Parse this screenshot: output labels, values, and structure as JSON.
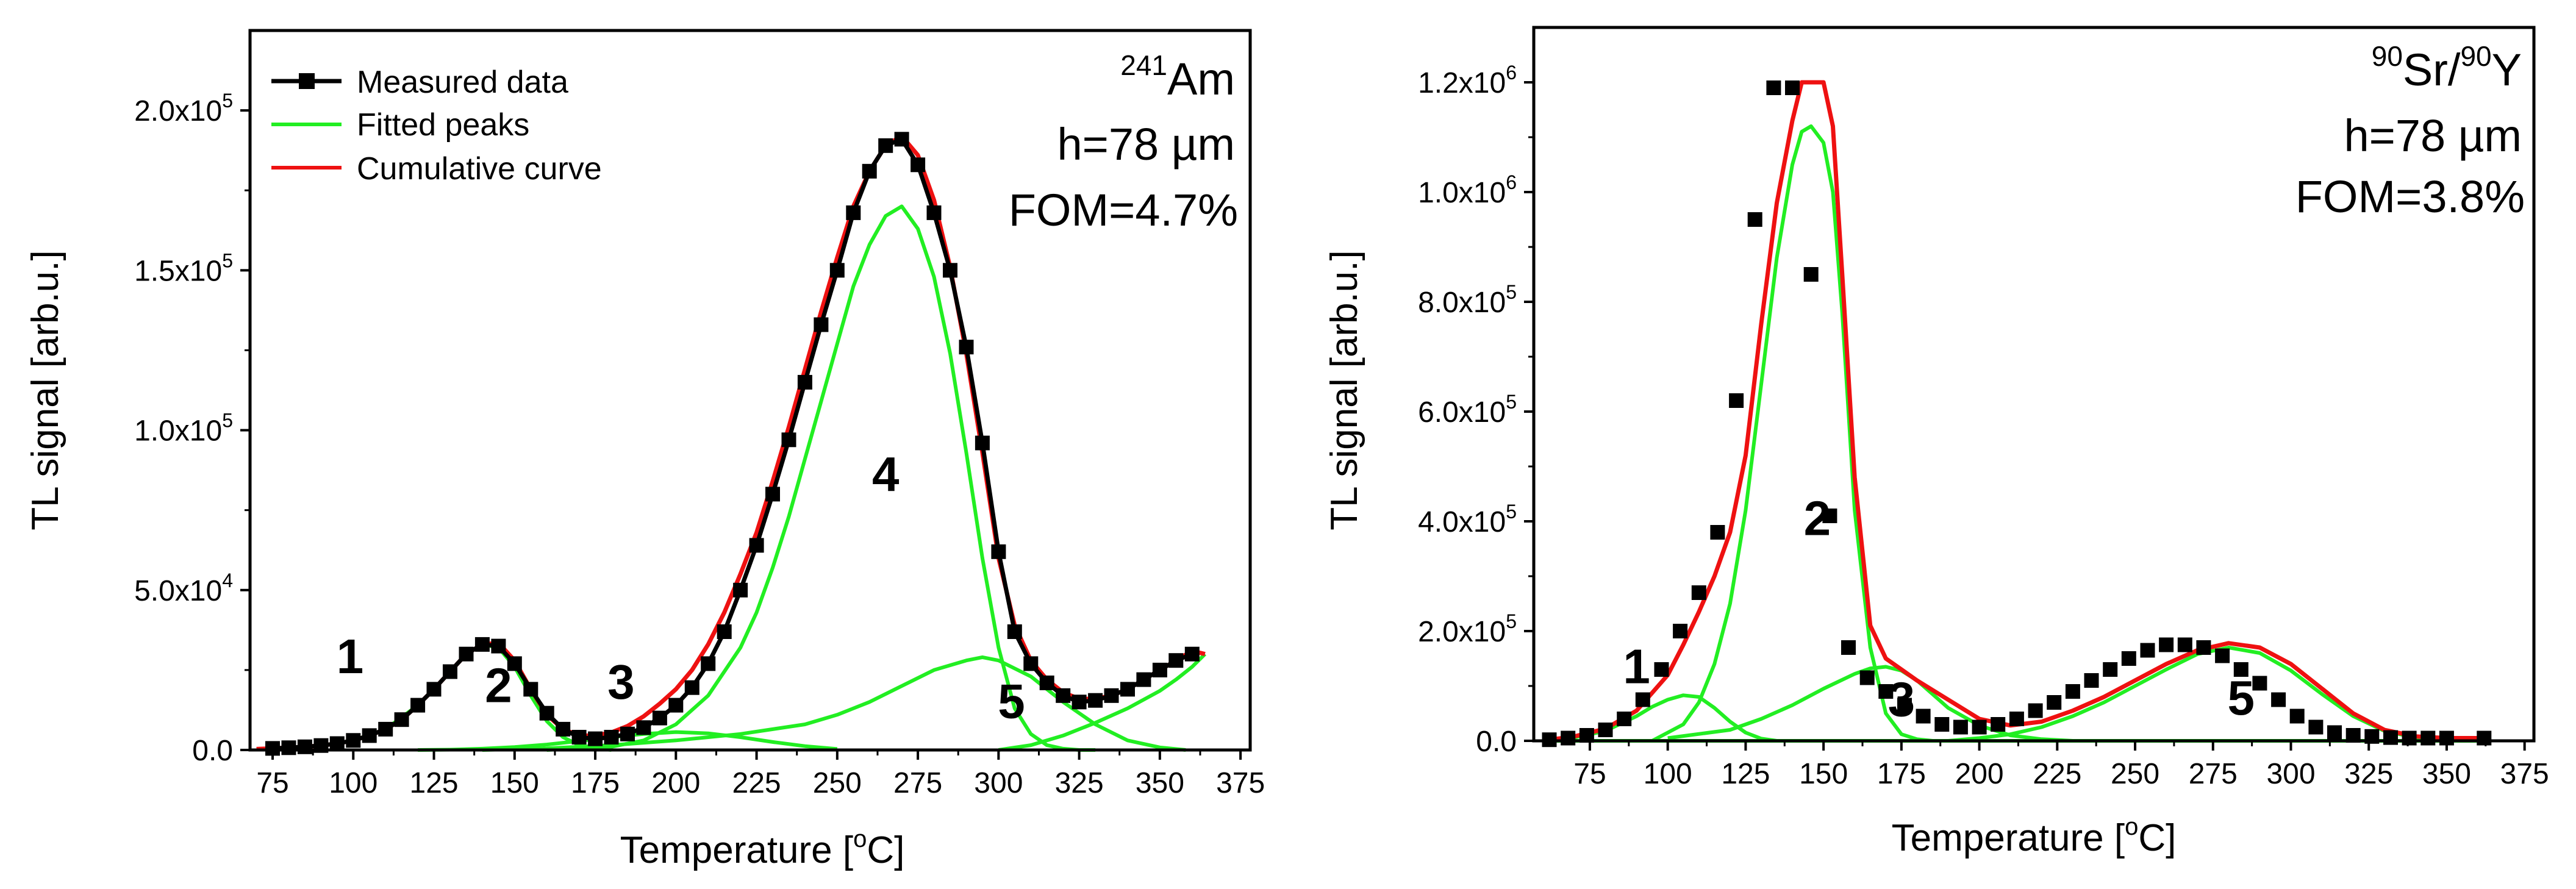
{
  "figure_text": {
    "sup_sign": "x10",
    "degree_o": "o"
  },
  "chart_data": [
    {
      "type": "line",
      "id": "am",
      "title": "",
      "source_sup": "241",
      "source_label": "Am",
      "thickness_label": "h=78 µm",
      "fom_label": "FOM=4.7%",
      "xlabel": "Temperature [",
      "xlabel_unit": "C]",
      "ylabel": "TL signal [arb.u.]",
      "xlim": [
        68,
        378
      ],
      "ylim": [
        0,
        225000
      ],
      "xticks": [
        75,
        100,
        125,
        150,
        175,
        200,
        225,
        250,
        275,
        300,
        325,
        350,
        375
      ],
      "yticks": [
        {
          "value": 0,
          "mant": "0.0",
          "exp": ""
        },
        {
          "value": 50000,
          "mant": "5.0",
          "exp": "4"
        },
        {
          "value": 100000,
          "mant": "1.0",
          "exp": "5"
        },
        {
          "value": 150000,
          "mant": "1.5",
          "exp": "5"
        },
        {
          "value": 200000,
          "mant": "2.0",
          "exp": "5"
        }
      ],
      "legend": {
        "placement": "top-left",
        "entries": [
          {
            "label": "Measured data",
            "color": "#000000",
            "marker": "square"
          },
          {
            "label": "Fitted peaks",
            "color": "#22ee22",
            "marker": "none"
          },
          {
            "label": "Cumulative curve",
            "color": "#ee1111",
            "marker": "none"
          }
        ]
      },
      "peak_labels": [
        {
          "text": "1",
          "x": 99,
          "y": 24000
        },
        {
          "text": "2",
          "x": 145,
          "y": 15000
        },
        {
          "text": "3",
          "x": 183,
          "y": 16000
        },
        {
          "text": "4",
          "x": 265,
          "y": 81000
        },
        {
          "text": "5",
          "x": 304,
          "y": 10000
        }
      ],
      "measured": {
        "name": "Measured data",
        "color": "#000000",
        "x": [
          75,
          80,
          85,
          90,
          95,
          100,
          105,
          110,
          115,
          120,
          125,
          130,
          135,
          140,
          145,
          150,
          155,
          160,
          165,
          170,
          175,
          180,
          185,
          190,
          195,
          200,
          205,
          210,
          215,
          220,
          225,
          230,
          235,
          240,
          245,
          250,
          255,
          260,
          265,
          270,
          275,
          280,
          285,
          290,
          295,
          300,
          305,
          310,
          315,
          320,
          325,
          330,
          335,
          340,
          345,
          350,
          355,
          360
        ],
        "y": [
          500,
          700,
          1000,
          1400,
          2000,
          3000,
          4500,
          6500,
          9500,
          14000,
          19000,
          24500,
          30000,
          33000,
          32500,
          27000,
          19000,
          11500,
          6500,
          4000,
          3500,
          4000,
          5000,
          7000,
          10000,
          14000,
          19500,
          27000,
          37000,
          50000,
          64000,
          80000,
          97000,
          115000,
          133000,
          150000,
          168000,
          181000,
          189000,
          191000,
          183000,
          168000,
          150000,
          126000,
          96000,
          62000,
          37000,
          27000,
          21000,
          17000,
          15000,
          15500,
          17000,
          19000,
          22000,
          25000,
          28000,
          30000
        ]
      },
      "cumulative": {
        "name": "Cumulative curve",
        "color": "#ee1111",
        "x": [
          70,
          75,
          80,
          85,
          90,
          95,
          100,
          105,
          110,
          115,
          120,
          125,
          130,
          135,
          140,
          145,
          150,
          155,
          160,
          165,
          170,
          175,
          180,
          185,
          190,
          195,
          200,
          205,
          210,
          215,
          220,
          225,
          230,
          235,
          240,
          245,
          250,
          255,
          260,
          265,
          270,
          275,
          280,
          285,
          290,
          295,
          300,
          305,
          310,
          315,
          320,
          325,
          330,
          335,
          340,
          345,
          350,
          355,
          360,
          364
        ],
        "y": [
          300,
          500,
          700,
          1000,
          1400,
          2000,
          3000,
          4500,
          6500,
          9500,
          14000,
          19000,
          24500,
          30000,
          33000,
          33500,
          28000,
          19000,
          11000,
          6500,
          4500,
          4500,
          5500,
          7500,
          10500,
          14500,
          19000,
          25000,
          33000,
          43000,
          55000,
          68000,
          84000,
          101000,
          119000,
          137000,
          154000,
          170000,
          181000,
          189000,
          192000,
          186000,
          172000,
          151000,
          124000,
          93000,
          60000,
          39000,
          28000,
          22000,
          18000,
          16000,
          16000,
          17000,
          19000,
          22000,
          25000,
          28000,
          31000,
          30000
        ]
      },
      "fitted_peaks": [
        {
          "name": "Fitted peak 1",
          "color": "#22ee22",
          "x": [
            70,
            80,
            90,
            100,
            110,
            120,
            125,
            130,
            135,
            140,
            145,
            150,
            155,
            160,
            165,
            170,
            175,
            180
          ],
          "y": [
            300,
            700,
            1400,
            3000,
            6500,
            14000,
            19000,
            24500,
            30000,
            33000,
            32000,
            26000,
            17000,
            9000,
            4000,
            1500,
            500,
            0
          ]
        },
        {
          "name": "Fitted peak 2",
          "color": "#22ee22",
          "x": [
            120,
            130,
            140,
            150,
            160,
            170,
            180,
            190,
            200,
            210,
            220,
            230,
            240,
            250
          ],
          "y": [
            0,
            100,
            400,
            900,
            1700,
            2800,
            4000,
            5000,
            5600,
            5200,
            4000,
            2500,
            1200,
            300
          ]
        },
        {
          "name": "Fitted peak 4",
          "color": "#22ee22",
          "x": [
            160,
            180,
            190,
            200,
            210,
            220,
            225,
            230,
            235,
            240,
            245,
            250,
            255,
            260,
            265,
            270,
            275,
            280,
            285,
            290,
            295,
            300,
            305,
            310,
            315,
            320,
            325,
            330
          ],
          "y": [
            0,
            1000,
            3000,
            8000,
            17000,
            32000,
            43000,
            57000,
            73000,
            91000,
            109000,
            127000,
            145000,
            158000,
            167000,
            170000,
            163000,
            148000,
            124000,
            93000,
            60000,
            32000,
            13000,
            5000,
            1500,
            400,
            0,
            0
          ]
        },
        {
          "name": "Fitted peak 5",
          "color": "#22ee22",
          "x": [
            140,
            160,
            180,
            200,
            220,
            240,
            250,
            260,
            270,
            280,
            290,
            295,
            300,
            310,
            320,
            330,
            340,
            350,
            358
          ],
          "y": [
            0,
            500,
            1500,
            3000,
            5000,
            8000,
            11000,
            15000,
            20000,
            25000,
            28000,
            29000,
            28000,
            23000,
            15000,
            8000,
            3000,
            800,
            0
          ]
        },
        {
          "name": "Fitted peak tail",
          "color": "#22ee22",
          "x": [
            300,
            310,
            320,
            330,
            340,
            350,
            355,
            360,
            364
          ],
          "y": [
            0,
            1500,
            4500,
            8500,
            13000,
            18500,
            22000,
            26000,
            30000
          ]
        }
      ]
    },
    {
      "type": "line",
      "id": "sr",
      "title": "",
      "source_sup1": "90",
      "source_label1": "Sr/",
      "source_sup2": "90",
      "source_label2": "Y",
      "thickness_label": "h=78 µm",
      "fom_label": "FOM=3.8%",
      "xlabel": "Temperature [",
      "xlabel_unit": "C]",
      "ylabel": "TL signal [arb.u.]",
      "xlim": [
        57,
        378
      ],
      "ylim": [
        0,
        1300000
      ],
      "xticks": [
        75,
        100,
        125,
        150,
        175,
        200,
        225,
        250,
        275,
        300,
        325,
        350,
        375
      ],
      "yticks": [
        {
          "value": 0,
          "mant": "0.0",
          "exp": ""
        },
        {
          "value": 200000,
          "mant": "2.0",
          "exp": "5"
        },
        {
          "value": 400000,
          "mant": "4.0",
          "exp": "5"
        },
        {
          "value": 600000,
          "mant": "6.0",
          "exp": "5"
        },
        {
          "value": 800000,
          "mant": "8.0",
          "exp": "5"
        },
        {
          "value": 1000000,
          "mant": "1.0",
          "exp": "6"
        },
        {
          "value": 1200000,
          "mant": "1.2",
          "exp": "6"
        }
      ],
      "peak_labels": [
        {
          "text": "1",
          "x": 90,
          "y": 105000
        },
        {
          "text": "2",
          "x": 148,
          "y": 375000
        },
        {
          "text": "3",
          "x": 175,
          "y": 45000
        },
        {
          "text": "5",
          "x": 284,
          "y": 48000
        }
      ],
      "measured": {
        "name": "Measured data",
        "color": "#000000",
        "x": [
          62,
          68,
          74,
          80,
          86,
          92,
          98,
          104,
          110,
          116,
          122,
          128,
          134,
          140,
          146,
          152,
          158,
          164,
          170,
          176,
          182,
          188,
          194,
          200,
          206,
          212,
          218,
          224,
          230,
          236,
          242,
          248,
          254,
          260,
          266,
          272,
          278,
          284,
          290,
          296,
          302,
          308,
          314,
          320,
          326,
          332,
          338,
          344,
          350,
          362
        ],
        "y": [
          2000,
          5000,
          10000,
          20000,
          40000,
          75000,
          130000,
          200000,
          270000,
          380000,
          620000,
          950000,
          1190000,
          1190000,
          850000,
          410000,
          170000,
          115000,
          90000,
          65000,
          45000,
          30000,
          25000,
          25000,
          30000,
          40000,
          55000,
          70000,
          90000,
          110000,
          130000,
          150000,
          165000,
          175000,
          175000,
          170000,
          155000,
          130000,
          105000,
          75000,
          45000,
          25000,
          15000,
          10000,
          8000,
          6000,
          5000,
          5000,
          5000,
          5000
        ]
      },
      "cumulative": {
        "name": "Cumulative curve",
        "color": "#ee1111",
        "x": [
          62,
          70,
          80,
          90,
          100,
          105,
          110,
          115,
          120,
          125,
          130,
          135,
          140,
          143,
          146,
          150,
          153,
          156,
          160,
          165,
          170,
          175,
          180,
          190,
          200,
          210,
          220,
          230,
          240,
          250,
          260,
          270,
          280,
          290,
          300,
          310,
          320,
          330,
          340,
          350,
          362
        ],
        "y": [
          2000,
          8000,
          22000,
          55000,
          120000,
          175000,
          235000,
          300000,
          380000,
          520000,
          760000,
          980000,
          1130000,
          1200000,
          1200000,
          1200000,
          1120000,
          850000,
          480000,
          210000,
          150000,
          130000,
          110000,
          75000,
          40000,
          28000,
          35000,
          55000,
          80000,
          110000,
          140000,
          165000,
          178000,
          170000,
          140000,
          95000,
          50000,
          20000,
          8000,
          5000,
          5000
        ]
      },
      "fitted_peaks": [
        {
          "name": "Fitted peak 1",
          "color": "#22ee22",
          "x": [
            62,
            70,
            80,
            90,
            95,
            100,
            105,
            110,
            115,
            120,
            125,
            130,
            135
          ],
          "y": [
            2000,
            6000,
            18000,
            45000,
            62000,
            75000,
            83000,
            80000,
            60000,
            35000,
            15000,
            4000,
            0
          ]
        },
        {
          "name": "Fitted peak 2",
          "color": "#22ee22",
          "x": [
            95,
            105,
            110,
            115,
            120,
            125,
            130,
            135,
            140,
            143,
            146,
            150,
            153,
            156,
            160,
            165,
            170,
            175,
            180,
            185
          ],
          "y": [
            0,
            30000,
            70000,
            140000,
            250000,
            420000,
            650000,
            880000,
            1050000,
            1110000,
            1120000,
            1090000,
            1000000,
            780000,
            420000,
            170000,
            50000,
            12000,
            3000,
            0
          ]
        },
        {
          "name": "Fitted peak 3",
          "color": "#22ee22",
          "x": [
            100,
            120,
            130,
            140,
            150,
            160,
            165,
            170,
            175,
            180,
            185,
            190,
            200,
            210,
            220,
            230
          ],
          "y": [
            5000,
            20000,
            40000,
            65000,
            95000,
            122000,
            132000,
            135000,
            128000,
            110000,
            85000,
            60000,
            28000,
            10000,
            3000,
            0
          ]
        },
        {
          "name": "Fitted peak 5",
          "color": "#22ee22",
          "x": [
            190,
            200,
            210,
            220,
            230,
            240,
            250,
            260,
            270,
            280,
            290,
            300,
            310,
            320,
            330,
            340,
            350,
            362
          ],
          "y": [
            0,
            5000,
            12000,
            25000,
            45000,
            70000,
            100000,
            130000,
            158000,
            170000,
            160000,
            128000,
            85000,
            45000,
            18000,
            6000,
            2000,
            0
          ]
        },
        {
          "name": "Fitted baseline",
          "color": "#22ee22",
          "x": [
            62,
            362
          ],
          "y": [
            0,
            0
          ]
        }
      ]
    }
  ]
}
